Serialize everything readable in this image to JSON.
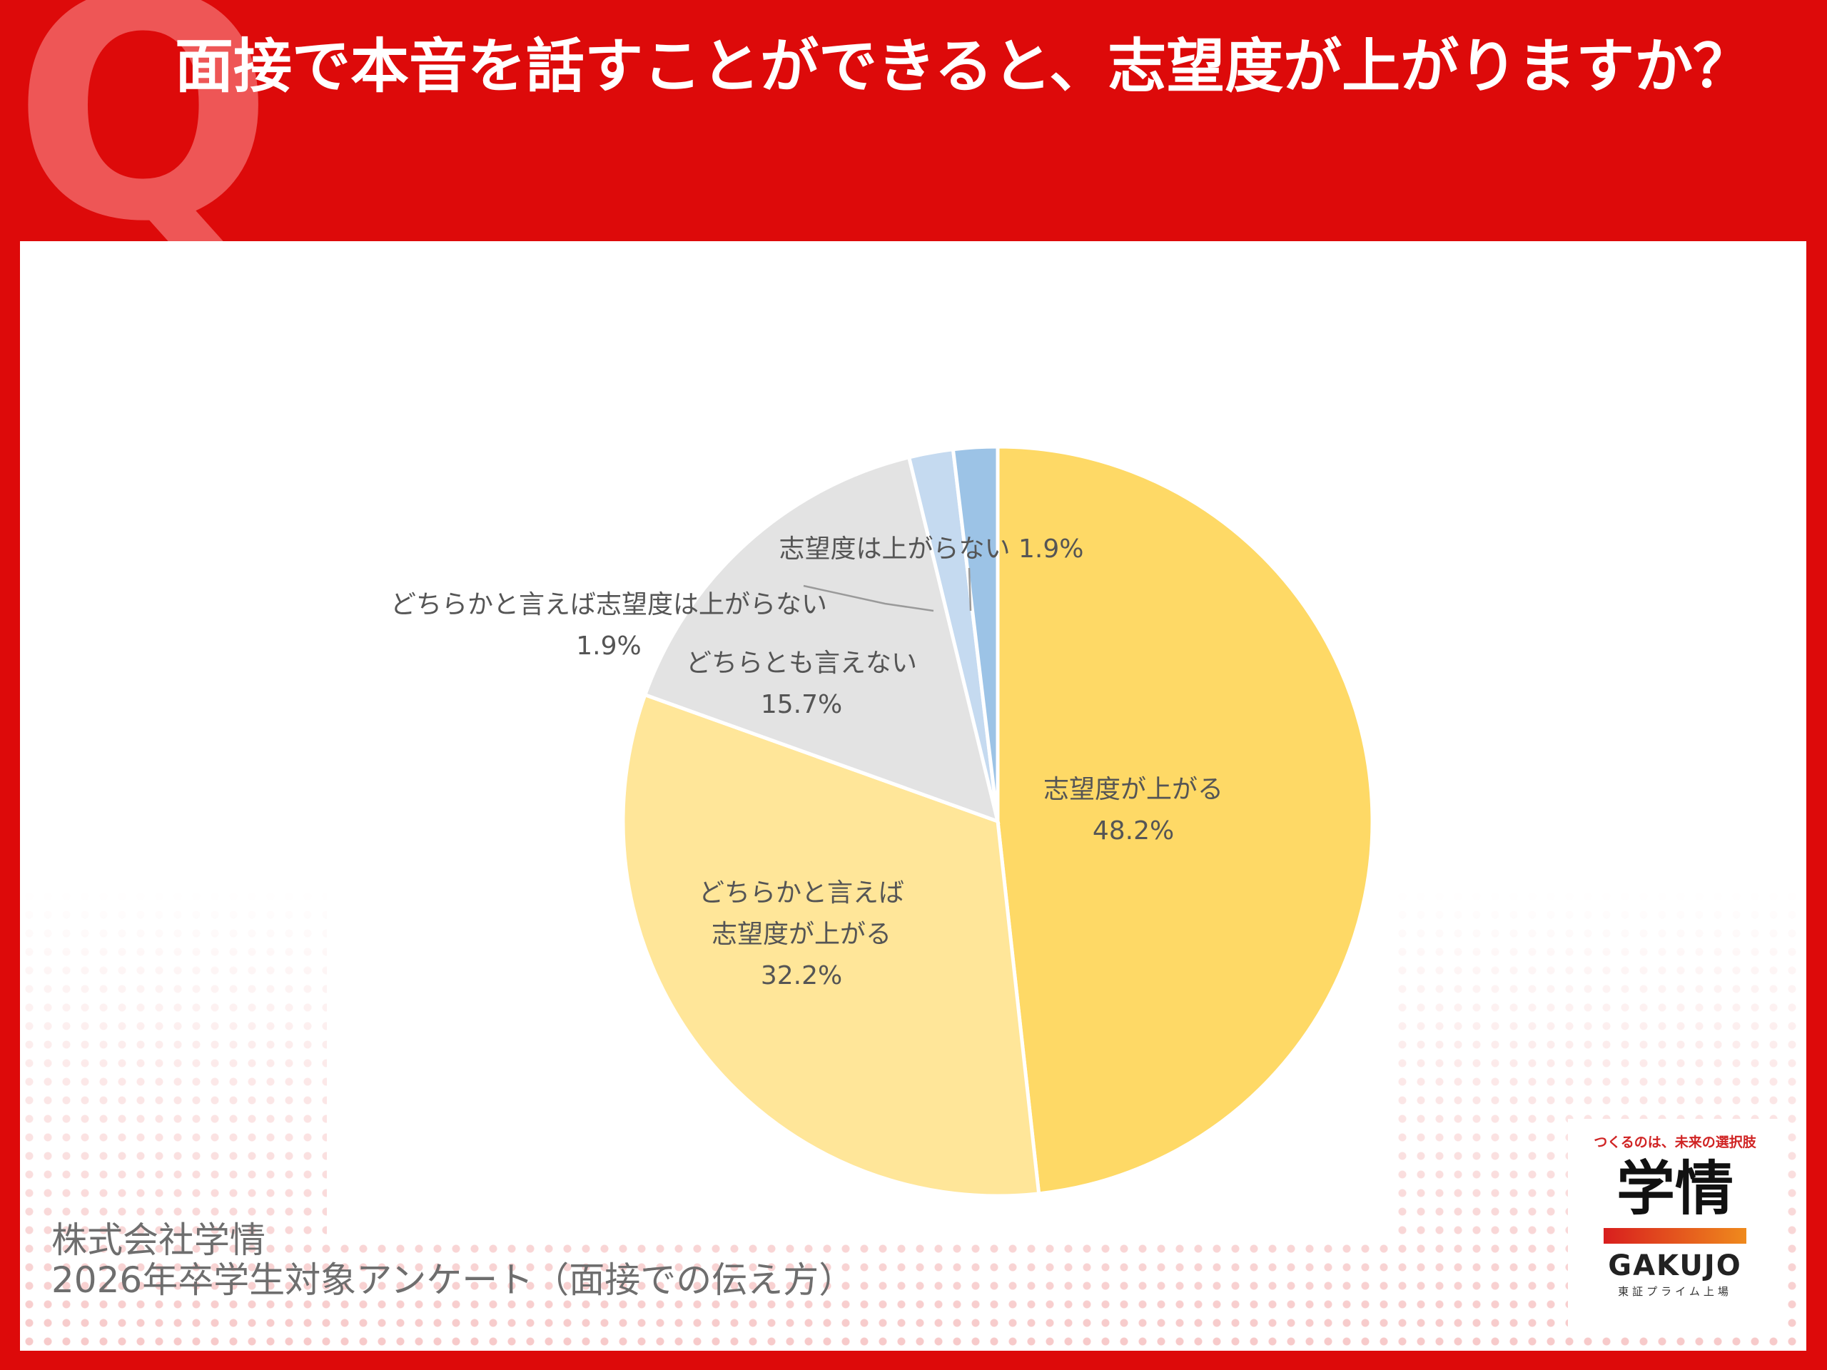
{
  "header": {
    "q_mark": "Q",
    "question": "面接で本音を話すことができると、志望度が上がりますか？"
  },
  "chart_data": {
    "type": "pie",
    "title": "",
    "start": "12 o'clock, clockwise",
    "slices": [
      {
        "label_lines": [
          "志望度が上がる"
        ],
        "value": 48.2,
        "value_label": "48.2%",
        "color": "#fed966"
      },
      {
        "label_lines": [
          "どちらかと言えば",
          "志望度が上がる"
        ],
        "value": 32.2,
        "value_label": "32.2%",
        "color": "#ffe699"
      },
      {
        "label_lines": [
          "どちらとも言えない"
        ],
        "value": 15.7,
        "value_label": "15.7%",
        "color": "#e3e3e3"
      },
      {
        "label_lines": [
          "どちらかと言えば志望度は上がらない"
        ],
        "value": 1.9,
        "value_label": "1.9%",
        "color": "#c5daf0"
      },
      {
        "label_lines": [
          "志望度は上がらない"
        ],
        "value": 1.9,
        "value_label": "1.9%",
        "color": "#9cc3e6"
      }
    ]
  },
  "source": {
    "company": "株式会社学情",
    "survey": "2026年卒学生対象アンケート（面接での伝え方）"
  },
  "logo": {
    "tagline": "つくるのは、未来の選択肢",
    "kanji": "学情",
    "name": "GAKUJO",
    "listing": "東証プライム上場"
  }
}
